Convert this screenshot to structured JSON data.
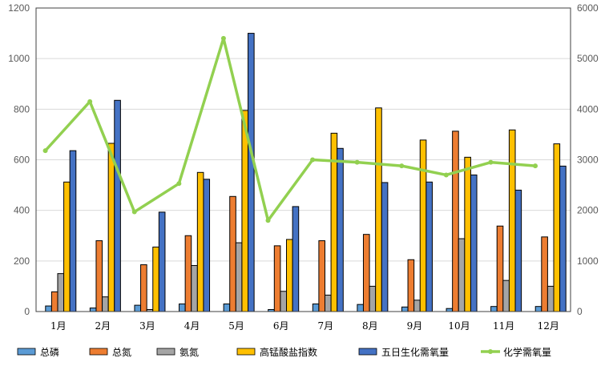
{
  "chart_data": {
    "type": "bar",
    "title": "",
    "categories": [
      "1月",
      "2月",
      "3月",
      "4月",
      "5月",
      "6月",
      "7月",
      "8月",
      "9月",
      "10月",
      "11月",
      "12月"
    ],
    "ylim": [
      0,
      1200
    ],
    "y2lim": [
      0,
      6000
    ],
    "yticks": [
      "0",
      "200",
      "400",
      "600",
      "800",
      "1000",
      "1200"
    ],
    "y2ticks": [
      "0",
      "1000",
      "2000",
      "3000",
      "4000",
      "5000",
      "6000"
    ],
    "grid": true,
    "legend_position": "bottom",
    "series": [
      {
        "name": "总磷",
        "axis": "left",
        "kind": "bar",
        "color": "#5B9BD5",
        "values": [
          22,
          14,
          25,
          30,
          30,
          8,
          30,
          28,
          18,
          12,
          20,
          20
        ]
      },
      {
        "name": "总氮",
        "axis": "left",
        "kind": "bar",
        "color": "#ED7D31",
        "values": [
          78,
          280,
          185,
          300,
          455,
          260,
          280,
          305,
          205,
          713,
          338,
          295
        ]
      },
      {
        "name": "氨氮",
        "axis": "left",
        "kind": "bar",
        "color": "#A5A5A5",
        "values": [
          150,
          58,
          8,
          182,
          272,
          80,
          65,
          100,
          45,
          288,
          123,
          100
        ]
      },
      {
        "name": "高锰酸盐指数",
        "axis": "left",
        "kind": "bar",
        "color": "#FFC000",
        "values": [
          512,
          665,
          255,
          550,
          795,
          285,
          705,
          805,
          678,
          610,
          718,
          663
        ]
      },
      {
        "name": "五日生化需氧量",
        "axis": "left",
        "kind": "bar",
        "color": "#4472C4",
        "values": [
          636,
          835,
          393,
          523,
          1100,
          415,
          645,
          510,
          512,
          540,
          480,
          575
        ]
      },
      {
        "name": "化学需氧量",
        "axis": "right",
        "kind": "line",
        "color": "#92D050",
        "values": [
          3180,
          4150,
          1970,
          2530,
          5400,
          1800,
          3000,
          2950,
          2880,
          2700,
          2950,
          2880
        ]
      }
    ]
  }
}
